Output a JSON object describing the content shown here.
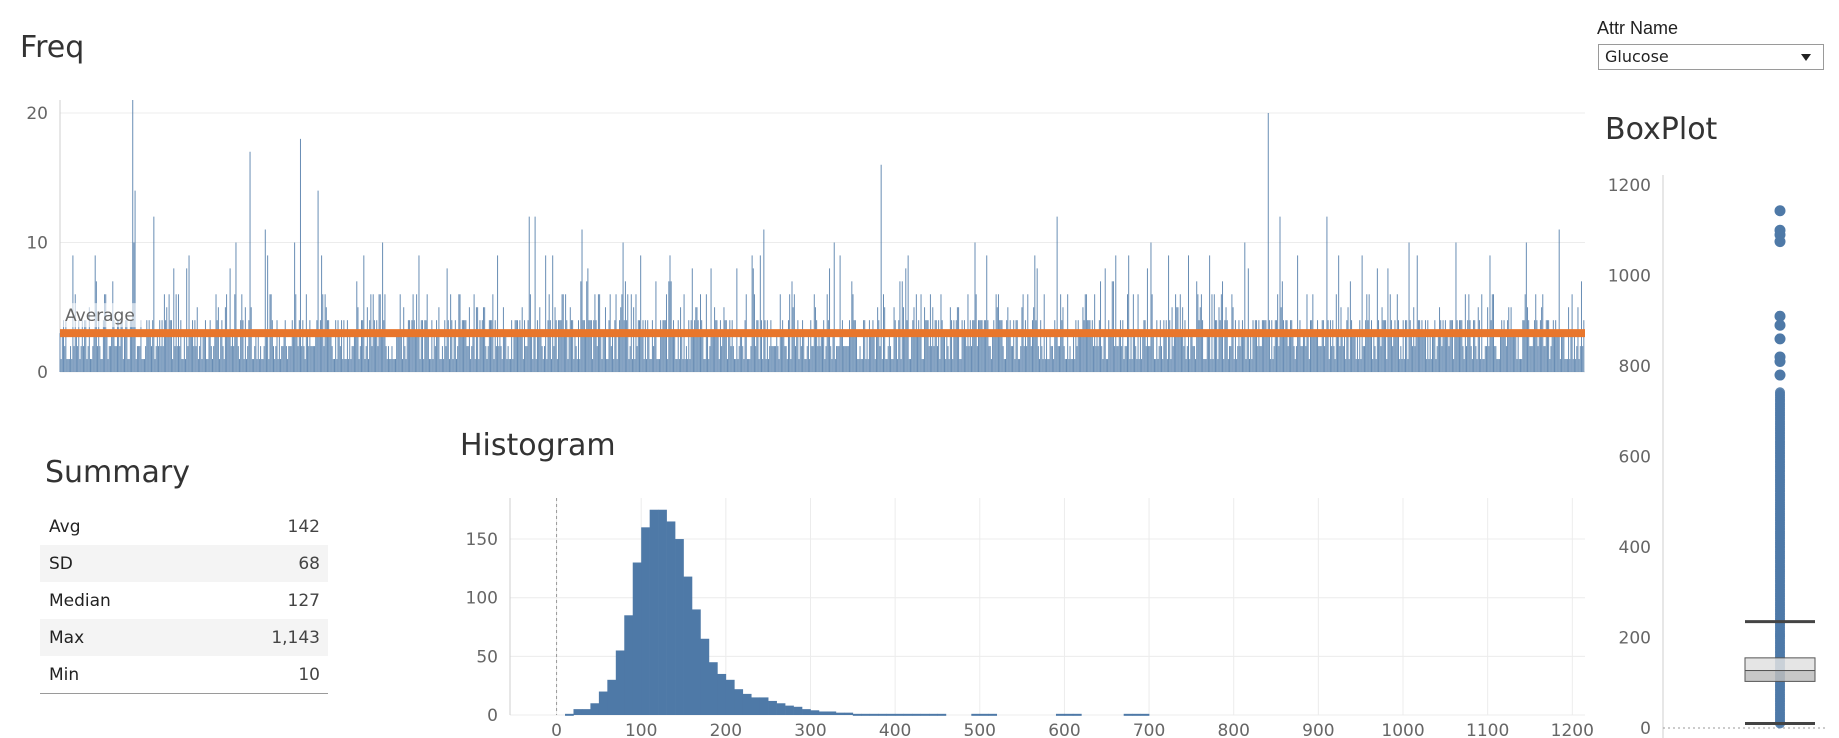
{
  "filter": {
    "label": "Attr Name",
    "selected": "Glucose"
  },
  "freq": {
    "title": "Freq",
    "reference_label": "Average",
    "yticks": [
      0,
      10,
      20
    ],
    "ylim": [
      0,
      21
    ],
    "bar_count": 1300,
    "baseline_range": [
      1,
      4
    ],
    "average": 3,
    "spikes": [
      [
        30,
        9
      ],
      [
        45,
        7
      ],
      [
        62,
        21
      ],
      [
        63,
        10
      ],
      [
        64,
        14
      ],
      [
        80,
        12
      ],
      [
        110,
        9
      ],
      [
        150,
        10
      ],
      [
        162,
        17
      ],
      [
        175,
        11
      ],
      [
        200,
        10
      ],
      [
        205,
        18
      ],
      [
        220,
        14
      ],
      [
        275,
        10
      ],
      [
        330,
        8
      ],
      [
        400,
        12
      ],
      [
        405,
        12
      ],
      [
        420,
        9
      ],
      [
        445,
        11
      ],
      [
        480,
        10
      ],
      [
        520,
        9
      ],
      [
        600,
        11
      ],
      [
        660,
        10
      ],
      [
        700,
        16
      ],
      [
        780,
        10
      ],
      [
        850,
        12
      ],
      [
        900,
        9
      ],
      [
        930,
        10
      ],
      [
        980,
        9
      ],
      [
        1010,
        10
      ],
      [
        1030,
        20
      ],
      [
        1040,
        12
      ],
      [
        1080,
        12
      ],
      [
        1110,
        9
      ],
      [
        1150,
        10
      ],
      [
        1190,
        10
      ],
      [
        1250,
        10
      ],
      [
        1278,
        11
      ]
    ]
  },
  "chart_data": [
    {
      "type": "bar",
      "title": "Freq",
      "note": "per-value frequency bars across ~1300 records with an average reference line",
      "average": 3,
      "ylim": [
        0,
        21
      ],
      "yticks": [
        0,
        10,
        20
      ]
    },
    {
      "type": "bar",
      "title": "Histogram",
      "bin_width": 10,
      "xlim": [
        -55,
        1215
      ],
      "ylim": [
        0,
        185
      ],
      "xticks": [
        0,
        100,
        200,
        300,
        400,
        500,
        600,
        700,
        800,
        900,
        1000,
        1100,
        1200
      ],
      "yticks": [
        0,
        50,
        100,
        150
      ],
      "bins": [
        [
          10,
          1
        ],
        [
          20,
          5
        ],
        [
          30,
          5
        ],
        [
          40,
          10
        ],
        [
          50,
          20
        ],
        [
          60,
          30
        ],
        [
          70,
          55
        ],
        [
          80,
          85
        ],
        [
          90,
          130
        ],
        [
          100,
          160
        ],
        [
          110,
          175
        ],
        [
          120,
          175
        ],
        [
          130,
          165
        ],
        [
          140,
          150
        ],
        [
          150,
          118
        ],
        [
          160,
          90
        ],
        [
          170,
          65
        ],
        [
          180,
          45
        ],
        [
          190,
          35
        ],
        [
          200,
          30
        ],
        [
          210,
          22
        ],
        [
          220,
          18
        ],
        [
          230,
          15
        ],
        [
          240,
          15
        ],
        [
          250,
          12
        ],
        [
          260,
          10
        ],
        [
          270,
          8
        ],
        [
          280,
          7
        ],
        [
          290,
          5
        ],
        [
          300,
          4
        ],
        [
          310,
          3
        ],
        [
          320,
          3
        ],
        [
          330,
          2
        ],
        [
          340,
          2
        ],
        [
          350,
          1
        ],
        [
          360,
          1
        ],
        [
          370,
          1
        ],
        [
          380,
          1
        ],
        [
          390,
          1
        ],
        [
          400,
          1
        ],
        [
          410,
          1
        ],
        [
          420,
          1
        ],
        [
          430,
          1
        ],
        [
          440,
          1
        ],
        [
          450,
          1
        ],
        [
          490,
          1
        ],
        [
          500,
          1
        ],
        [
          510,
          1
        ],
        [
          590,
          1
        ],
        [
          600,
          1
        ],
        [
          610,
          1
        ],
        [
          670,
          1
        ],
        [
          680,
          1
        ],
        [
          690,
          1
        ]
      ]
    },
    {
      "type": "box",
      "title": "BoxPlot",
      "ylim": [
        0,
        1200
      ],
      "yticks": [
        0,
        200,
        400,
        600,
        800,
        1000,
        1200
      ],
      "whisker_low": 10,
      "q1": 103,
      "median": 127,
      "q3": 155,
      "whisker_high": 235,
      "outliers": [
        1143,
        1100,
        1090,
        1075,
        910,
        890,
        860,
        820,
        810,
        780,
        740,
        730,
        720,
        710,
        700,
        690,
        680,
        670,
        660,
        650,
        640,
        630,
        620,
        610,
        600,
        590,
        580,
        570,
        560,
        550,
        540,
        530,
        520,
        510,
        500,
        490,
        480,
        470,
        460,
        450,
        440,
        430,
        420,
        410,
        400,
        390,
        380,
        370,
        360,
        350,
        340,
        330,
        320,
        310,
        300,
        290,
        280,
        270,
        260,
        250,
        245,
        240
      ]
    }
  ],
  "histogram": {
    "title": "Histogram"
  },
  "boxplot": {
    "title": "BoxPlot"
  },
  "summary": {
    "title": "Summary",
    "rows": [
      {
        "label": "Avg",
        "value": "142"
      },
      {
        "label": "SD",
        "value": "68"
      },
      {
        "label": "Median",
        "value": "127"
      },
      {
        "label": "Max",
        "value": "1,143"
      },
      {
        "label": "Min",
        "value": "10"
      }
    ]
  },
  "colors": {
    "bar": "#4e79a7",
    "bar_light": "#8fb0d0",
    "reference": "#e8762c",
    "grid": "#ececec",
    "axis": "#cfcfcf"
  }
}
